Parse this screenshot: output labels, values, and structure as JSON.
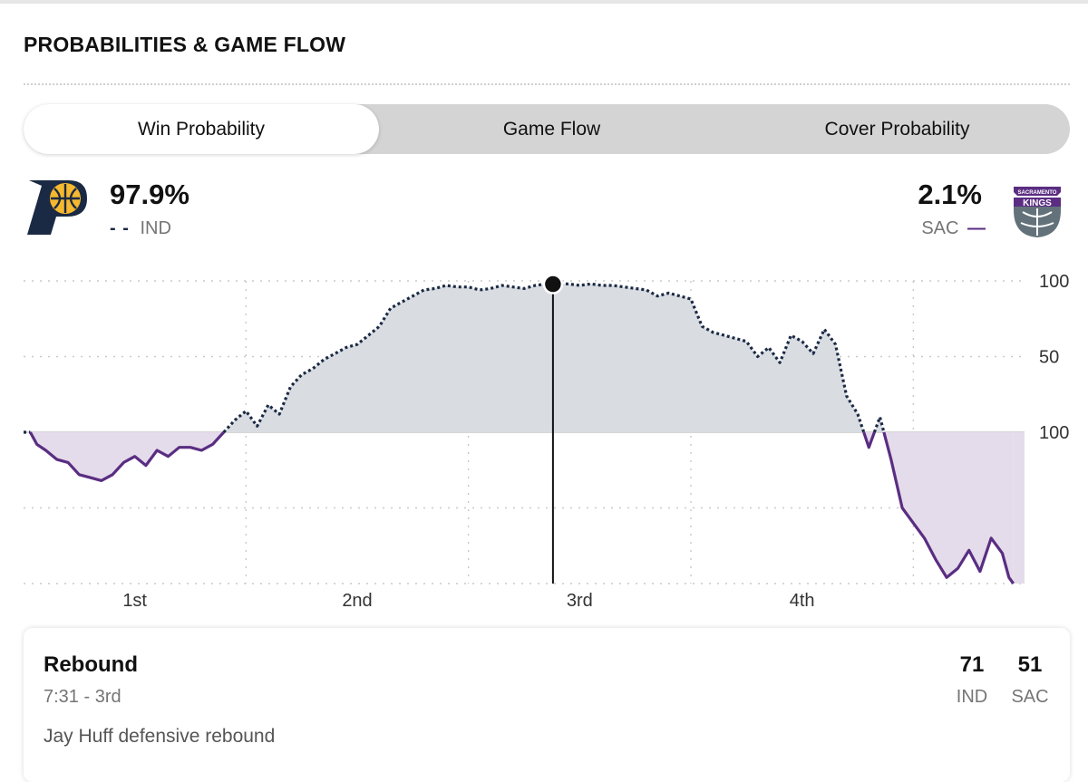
{
  "section": {
    "title": "PROBABILITIES & GAME FLOW"
  },
  "tabs": [
    {
      "label": "Win Probability",
      "active": true
    },
    {
      "label": "Game Flow",
      "active": false
    },
    {
      "label": "Cover Probability",
      "active": false
    }
  ],
  "home": {
    "abbr": "IND",
    "pct": "97.9%",
    "line_marker": "- -",
    "color": "#1b2a44",
    "logo": "pacers-logo"
  },
  "away": {
    "abbr": "SAC",
    "pct": "2.1%",
    "line_marker": "—",
    "color": "#5a2d82",
    "logo": "kings-logo",
    "logo_text_top": "SACRAMENTO",
    "logo_text_main": "KINGS"
  },
  "chart_data": {
    "type": "line",
    "title": "Win Probability",
    "xlabel": "",
    "ylabel": "",
    "x_range": [
      0,
      4.5
    ],
    "xlim": [
      0,
      4.5
    ],
    "ylim": [
      -100,
      100
    ],
    "y_tick_values": [
      100,
      50,
      0
    ],
    "y_tick_labels": [
      "100",
      "50",
      "100"
    ],
    "x_tick_values": [
      0.5,
      1.5,
      2.5,
      3.5
    ],
    "x_tick_labels": [
      "1st",
      "2nd",
      "3rd",
      "4th"
    ],
    "gridlines": true,
    "baseline": 50,
    "marker": {
      "x": 2.38,
      "y": 97.9
    },
    "series": [
      {
        "name": "IND win probability",
        "x": [
          0.0,
          0.03,
          0.06,
          0.1,
          0.15,
          0.2,
          0.25,
          0.3,
          0.35,
          0.4,
          0.45,
          0.5,
          0.55,
          0.6,
          0.65,
          0.7,
          0.75,
          0.8,
          0.85,
          0.9,
          0.95,
          1.0,
          1.05,
          1.1,
          1.15,
          1.2,
          1.25,
          1.3,
          1.35,
          1.4,
          1.45,
          1.5,
          1.55,
          1.6,
          1.65,
          1.7,
          1.75,
          1.8,
          1.85,
          1.9,
          1.95,
          2.0,
          2.05,
          2.1,
          2.15,
          2.2,
          2.25,
          2.3,
          2.35,
          2.38,
          2.45,
          2.5,
          2.55,
          2.6,
          2.65,
          2.7,
          2.75,
          2.8,
          2.85,
          2.9,
          2.95,
          3.0,
          3.05,
          3.1,
          3.15,
          3.2,
          3.25,
          3.3,
          3.35,
          3.4,
          3.45,
          3.5,
          3.55,
          3.6,
          3.65,
          3.7,
          3.75,
          3.8,
          3.85,
          3.9,
          3.95,
          4.0,
          4.05,
          4.1,
          4.15,
          4.2,
          4.25,
          4.3,
          4.35,
          4.4,
          4.43,
          4.45
        ],
        "y": [
          0,
          0,
          -8,
          -12,
          -18,
          -20,
          -28,
          -30,
          -32,
          -28,
          -20,
          -16,
          -22,
          -12,
          -16,
          -10,
          -10,
          -12,
          -8,
          0,
          8,
          14,
          4,
          18,
          12,
          30,
          38,
          42,
          48,
          52,
          56,
          58,
          64,
          70,
          82,
          86,
          90,
          94,
          95,
          97,
          96,
          96,
          94,
          95,
          97,
          96,
          95,
          97,
          98,
          97.9,
          98,
          97,
          98,
          97,
          97,
          96,
          95,
          94,
          90,
          92,
          90,
          88,
          70,
          66,
          64,
          62,
          60,
          50,
          56,
          46,
          64,
          60,
          52,
          68,
          58,
          24,
          12,
          -10,
          10,
          -18,
          -50,
          -60,
          -70,
          -84,
          -96,
          -90,
          -78,
          -92,
          -70,
          -80,
          -96,
          -100
        ]
      }
    ]
  },
  "play": {
    "type": "Rebound",
    "time": "7:31 - 3rd",
    "description": "Jay Huff defensive rebound",
    "home_score": "71",
    "away_score": "51",
    "home_abbr": "IND",
    "away_abbr": "SAC"
  }
}
